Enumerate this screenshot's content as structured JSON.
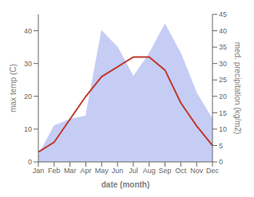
{
  "chart_data": {
    "type": "line",
    "xlabel": "date (month)",
    "ylabel": "max temp (C)",
    "y2label": "med. precipitation (kg/m2)",
    "categories": [
      "Jan",
      "Feb",
      "Mar",
      "Apr",
      "May",
      "Jun",
      "Jul",
      "Aug",
      "Sep",
      "Oct",
      "Nov",
      "Dec"
    ],
    "series": [
      {
        "type": "area",
        "axis": "y2",
        "color": "#c5cdf5",
        "values": [
          2,
          11,
          13,
          14,
          40,
          35,
          26,
          33,
          42,
          33,
          21,
          13
        ]
      },
      {
        "type": "line",
        "color": "#c0392b",
        "values": [
          3,
          6,
          13,
          20,
          26,
          29,
          32,
          32,
          28,
          18,
          11,
          5
        ]
      }
    ],
    "ylim": [
      0,
      45
    ],
    "yticks": [
      0,
      10,
      20,
      30,
      40
    ],
    "y2lim": [
      0,
      45
    ],
    "y2ticks": [
      0,
      5,
      10,
      15,
      20,
      25,
      30,
      35,
      40,
      45
    ]
  }
}
